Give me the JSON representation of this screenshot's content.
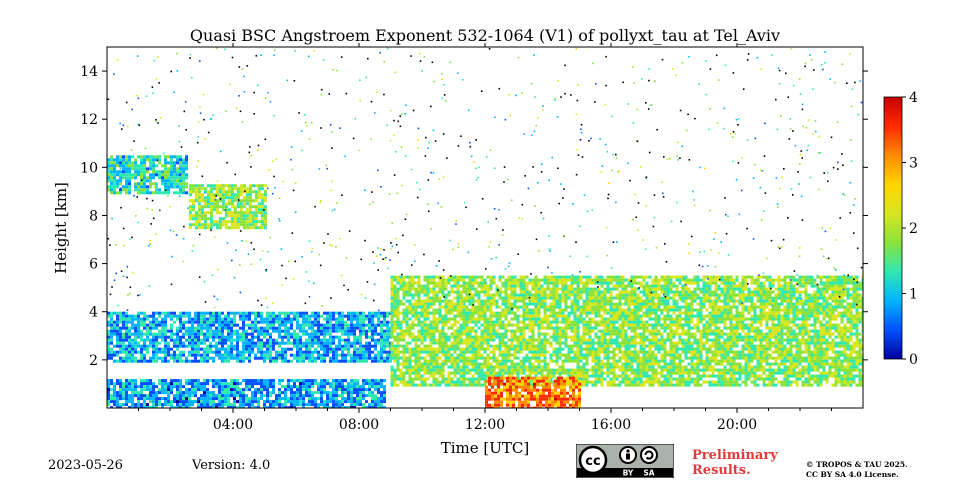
{
  "chart_data": {
    "type": "heatmap",
    "title": "Quasi BSC Angstroem Exponent 532-1064 (V1) of pollyxt_tau at Tel_Aviv",
    "xlabel": "Time [UTC]",
    "ylabel": "Height [km]",
    "xlim_hours": [
      0,
      24
    ],
    "ylim_km": [
      0,
      15
    ],
    "x_ticks": [
      "04:00",
      "08:00",
      "12:00",
      "16:00",
      "20:00"
    ],
    "x_tick_hours": [
      4,
      8,
      12,
      16,
      20
    ],
    "y_ticks": [
      "2",
      "4",
      "6",
      "8",
      "10",
      "12",
      "14"
    ],
    "y_tick_values": [
      2,
      4,
      6,
      8,
      10,
      12,
      14
    ],
    "colorbar": {
      "min": 0,
      "max": 4,
      "ticks": [
        "0",
        "1",
        "2",
        "3",
        "4"
      ],
      "colormap": "jet",
      "colors": [
        "#0000a0",
        "#0050ff",
        "#00b4ff",
        "#2ee8b0",
        "#8be23a",
        "#d8e61e",
        "#ffd500",
        "#ff8a00",
        "#ff2a00",
        "#c80000"
      ]
    },
    "features": [
      {
        "time_start_h": 0.0,
        "time_end_h": 2.5,
        "height_start_km": 9.0,
        "height_end_km": 10.5,
        "value": 1.2
      },
      {
        "time_start_h": 2.6,
        "time_end_h": 5.0,
        "height_start_km": 7.5,
        "height_end_km": 9.3,
        "value": 1.8
      },
      {
        "time_start_h": 0.0,
        "time_end_h": 9.0,
        "height_start_km": 2.0,
        "height_end_km": 4.0,
        "value": 0.9
      },
      {
        "time_start_h": 9.0,
        "time_end_h": 24.0,
        "height_start_km": 0.9,
        "height_end_km": 5.5,
        "value": 1.8
      },
      {
        "time_start_h": 12.0,
        "time_end_h": 15.0,
        "height_start_km": 0.0,
        "height_end_km": 1.3,
        "value": 3.2
      },
      {
        "time_start_h": 0.0,
        "time_end_h": 8.8,
        "height_start_km": 0.0,
        "height_end_km": 1.2,
        "value": 0.8
      }
    ]
  },
  "footer": {
    "date": "2023-05-26",
    "version": "Version: 4.0",
    "preliminary_line1": "Preliminary",
    "preliminary_line2": "Results.",
    "license_line1": "© TROPOS & TAU 2025.",
    "license_line2": "CC BY SA 4.0 License.",
    "cc_badge": {
      "cc": "cc",
      "by": "BY",
      "sa": "SA"
    }
  }
}
